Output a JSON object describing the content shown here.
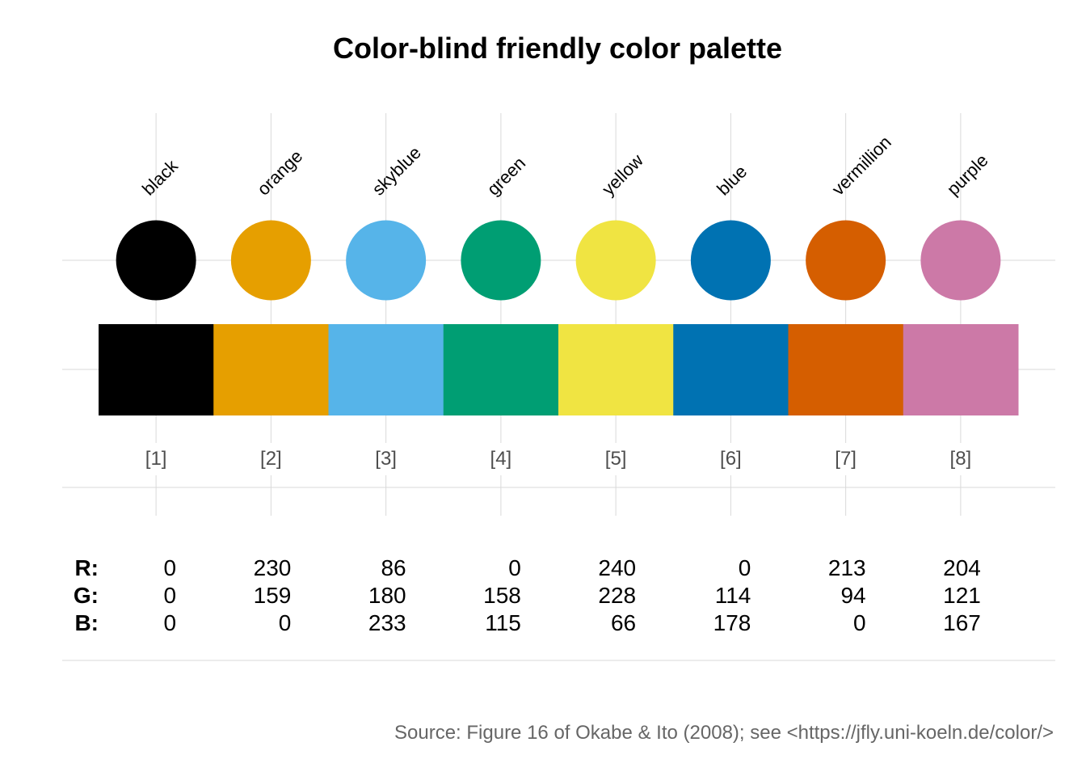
{
  "chart_data": {
    "type": "table",
    "title": "Color-blind friendly color palette",
    "colors": [
      {
        "index": "[1]",
        "name": "black",
        "hex": "#000000",
        "r": 0,
        "g": 0,
        "b": 0
      },
      {
        "index": "[2]",
        "name": "orange",
        "hex": "#E69F00",
        "r": 230,
        "g": 159,
        "b": 0
      },
      {
        "index": "[3]",
        "name": "skyblue",
        "hex": "#56B4E9",
        "r": 86,
        "g": 180,
        "b": 233
      },
      {
        "index": "[4]",
        "name": "green",
        "hex": "#009E73",
        "r": 0,
        "g": 158,
        "b": 115
      },
      {
        "index": "[5]",
        "name": "yellow",
        "hex": "#F0E442",
        "r": 240,
        "g": 228,
        "b": 66
      },
      {
        "index": "[6]",
        "name": "blue",
        "hex": "#0072B2",
        "r": 0,
        "g": 114,
        "b": 178
      },
      {
        "index": "[7]",
        "name": "vermillion",
        "hex": "#D55E00",
        "r": 213,
        "g": 94,
        "b": 0
      },
      {
        "index": "[8]",
        "name": "purple",
        "hex": "#CC79A7",
        "r": 204,
        "g": 121,
        "b": 167
      }
    ],
    "row_labels": [
      "R:",
      "G:",
      "B:"
    ],
    "caption": "Source: Figure 16 of Okabe & Ito (2008); see <https://jfly.uni-koeln.de/color/>"
  }
}
